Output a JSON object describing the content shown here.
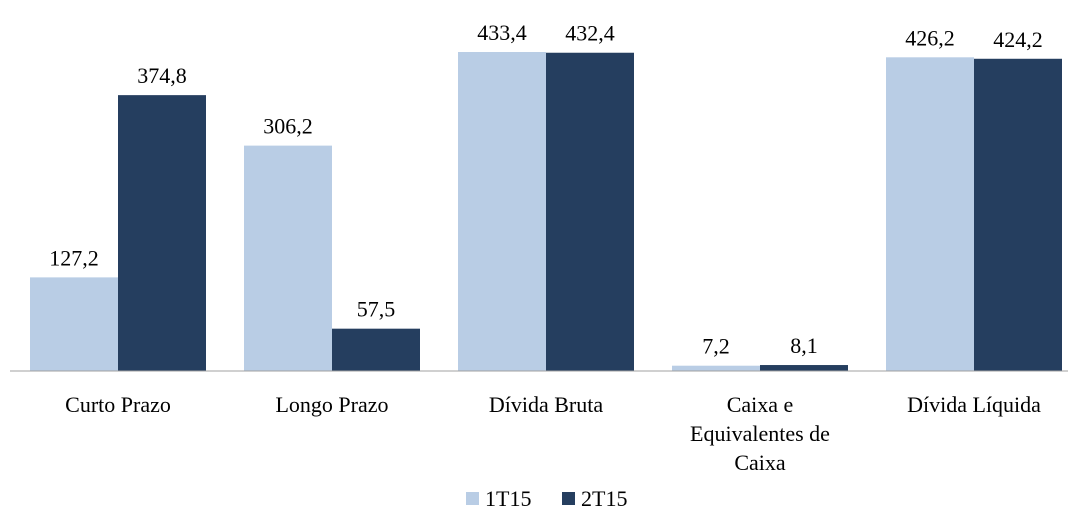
{
  "chart_data": {
    "type": "bar",
    "categories": [
      "Curto Prazo",
      "Longo Prazo",
      "Dívida Bruta",
      "Caixa e Equivalentes de Caixa",
      "Dívida Líquida"
    ],
    "series": [
      {
        "name": "1T15",
        "color": "#b9cde5",
        "values": [
          127.2,
          306.2,
          433.4,
          7.2,
          426.2
        ],
        "value_labels": [
          "127,2",
          "306,2",
          "433,4",
          "7,2",
          "426,2"
        ]
      },
      {
        "name": "2T15",
        "color": "#253e5f",
        "values": [
          374.8,
          57.5,
          432.4,
          8.1,
          424.2
        ],
        "value_labels": [
          "374,8",
          "57,5",
          "432,4",
          "8,1",
          "424,2"
        ]
      }
    ],
    "legend": "bottom"
  }
}
